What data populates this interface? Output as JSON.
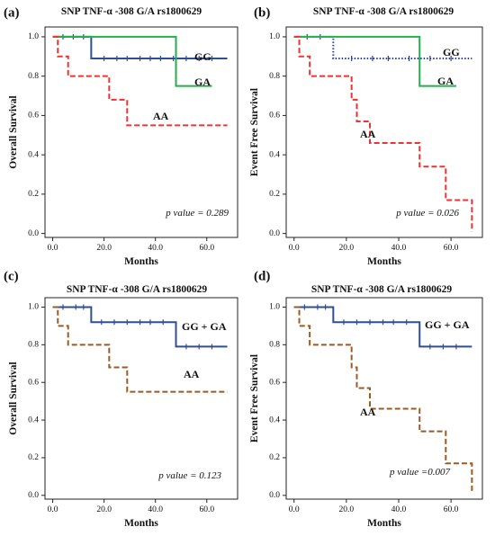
{
  "chart_data": [
    {
      "type": "line",
      "step": true,
      "panel_label": "(a)",
      "title": "SNP TNF-α -308 G/A rs1800629",
      "xlabel": "Months",
      "ylabel": "Overall Survival",
      "xlim": [
        -3,
        72
      ],
      "ylim": [
        -0.02,
        1.05
      ],
      "xticks": [
        0,
        20,
        40,
        60
      ],
      "xtick_labels": [
        "0.0",
        "20.0",
        "40.0",
        "60.0"
      ],
      "yticks": [
        0,
        0.2,
        0.4,
        0.6,
        0.8,
        1.0
      ],
      "ytick_labels": [
        "0.0",
        "0.2",
        "0.4",
        "0.6",
        "0.8",
        "1.0"
      ],
      "annotation": "p value = 0.289",
      "series": [
        {
          "name": "GG",
          "color": "#2f4f95",
          "dash": "solid",
          "x": [
            0,
            15,
            68
          ],
          "y": [
            1.0,
            0.89,
            0.89
          ],
          "censor_x": [
            4,
            8,
            12,
            20,
            25,
            29,
            34,
            38,
            42,
            47,
            52,
            57,
            62
          ]
        },
        {
          "name": "GA",
          "color": "#22b04b",
          "dash": "solid",
          "x": [
            0,
            48,
            62
          ],
          "y": [
            1.0,
            0.75,
            0.75
          ],
          "censor_x": []
        },
        {
          "name": "AA",
          "color": "#ee3333",
          "dash": "dashed",
          "x": [
            0,
            2,
            6,
            22,
            29,
            68
          ],
          "y": [
            1.0,
            0.9,
            0.8,
            0.68,
            0.55,
            0.55
          ],
          "censor_x": []
        }
      ],
      "series_labels": [
        "GG",
        "GA",
        "AA"
      ]
    },
    {
      "type": "line",
      "step": true,
      "panel_label": "(b)",
      "title": "SNP TNF-α -308 G/A rs1800629",
      "xlabel": "Months",
      "ylabel": "Event Free Survival",
      "xlim": [
        -3,
        72
      ],
      "ylim": [
        -0.02,
        1.05
      ],
      "xticks": [
        0,
        20,
        40,
        60
      ],
      "xtick_labels": [
        "0.0",
        "20.0",
        "40.0",
        "60.0"
      ],
      "yticks": [
        0,
        0.2,
        0.4,
        0.6,
        0.8,
        1.0
      ],
      "ytick_labels": [
        "0.0",
        "0.2",
        "0.4",
        "0.6",
        "0.8",
        "1.0"
      ],
      "annotation": "p value = 0.026",
      "series": [
        {
          "name": "GG",
          "color": "#2a3f9d",
          "dash": "dotted",
          "x": [
            0,
            15,
            68
          ],
          "y": [
            1.0,
            0.89,
            0.89
          ],
          "censor_x": [
            5,
            10,
            22,
            30,
            36,
            44,
            52,
            60
          ]
        },
        {
          "name": "GA",
          "color": "#22b04b",
          "dash": "solid",
          "x": [
            0,
            48,
            62
          ],
          "y": [
            1.0,
            0.75,
            0.75
          ],
          "censor_x": []
        },
        {
          "name": "AA",
          "color": "#ee3333",
          "dash": "dashed",
          "x": [
            0,
            2,
            6,
            22,
            24,
            26,
            29,
            48,
            58,
            67,
            68
          ],
          "y": [
            1.0,
            0.9,
            0.8,
            0.68,
            0.57,
            0.57,
            0.46,
            0.34,
            0.17,
            0.17,
            0.01
          ],
          "censor_x": []
        }
      ],
      "series_labels": [
        "GG",
        "GA",
        "AA"
      ]
    },
    {
      "type": "line",
      "step": true,
      "panel_label": "(c)",
      "title": "SNP TNF-α -308 G/A rs1800629",
      "xlabel": "Months",
      "ylabel": "Overall Survival",
      "xlim": [
        -3,
        72
      ],
      "ylim": [
        -0.02,
        1.05
      ],
      "xticks": [
        0,
        20,
        40,
        60
      ],
      "xtick_labels": [
        "0.0",
        "20.0",
        "40.0",
        "60.0"
      ],
      "yticks": [
        0,
        0.2,
        0.4,
        0.6,
        0.8,
        1.0
      ],
      "ytick_labels": [
        "0.0",
        "0.2",
        "0.4",
        "0.6",
        "0.8",
        "1.0"
      ],
      "annotation": "p  value = 0.123",
      "series": [
        {
          "name": "GG + GA",
          "color": "#2f4f95",
          "dash": "solid",
          "x": [
            0,
            15,
            48,
            68
          ],
          "y": [
            1.0,
            0.92,
            0.79,
            0.79
          ],
          "censor_x": [
            4,
            9,
            12,
            19,
            24,
            29,
            34,
            38,
            43,
            52,
            57,
            62
          ]
        },
        {
          "name": "AA",
          "color": "#9c5a24",
          "dash": "dashed",
          "x": [
            0,
            2,
            6,
            22,
            29,
            68
          ],
          "y": [
            1.0,
            0.9,
            0.8,
            0.68,
            0.55,
            0.55
          ],
          "censor_x": []
        }
      ],
      "series_labels": [
        "GG + GA",
        "AA"
      ]
    },
    {
      "type": "line",
      "step": true,
      "panel_label": "(d)",
      "title": "SNP TNF-α -308 G/A rs1800629",
      "xlabel": "Months",
      "ylabel": "Event Free Survival",
      "xlim": [
        -3,
        72
      ],
      "ylim": [
        -0.02,
        1.05
      ],
      "xticks": [
        0,
        20,
        40,
        60
      ],
      "xtick_labels": [
        "0.0",
        "20.0",
        "40.0",
        "60.0"
      ],
      "yticks": [
        0,
        0.2,
        0.4,
        0.6,
        0.8,
        1.0
      ],
      "ytick_labels": [
        "0.0",
        "0.2",
        "0.4",
        "0.6",
        "0.8",
        "1.0"
      ],
      "annotation": "p value =0.007",
      "series": [
        {
          "name": "GG + GA",
          "color": "#2f4f95",
          "dash": "solid",
          "x": [
            0,
            15,
            48,
            68
          ],
          "y": [
            1.0,
            0.92,
            0.79,
            0.79
          ],
          "censor_x": [
            4,
            9,
            12,
            19,
            24,
            29,
            34,
            38,
            43,
            52,
            57,
            62
          ]
        },
        {
          "name": "AA",
          "color": "#9c5a24",
          "dash": "dashed",
          "x": [
            0,
            2,
            6,
            22,
            24,
            26,
            29,
            48,
            58,
            67,
            68
          ],
          "y": [
            1.0,
            0.9,
            0.8,
            0.68,
            0.57,
            0.57,
            0.46,
            0.34,
            0.17,
            0.17,
            0.01
          ],
          "censor_x": []
        }
      ],
      "series_labels": [
        "GG + GA",
        "AA"
      ]
    }
  ]
}
